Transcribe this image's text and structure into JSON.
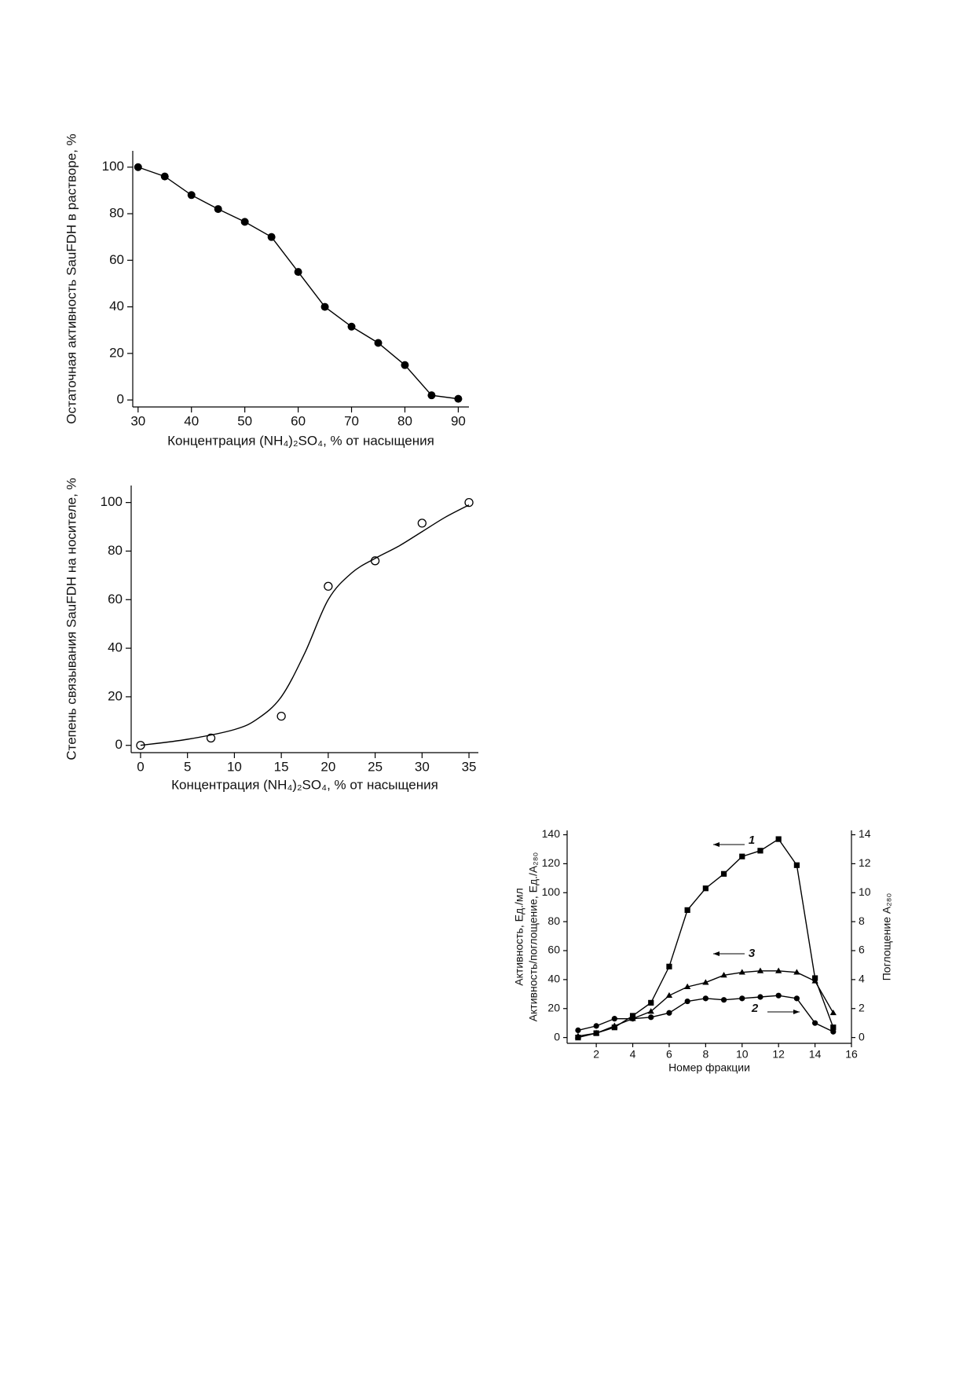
{
  "chart_data": [
    {
      "type": "line",
      "xlabel": "Концентрация (NH₄)₂SO₄, % от насыщения",
      "ylabel": "Остаточная активность SauFDH в растворе, %",
      "xlim": [
        29,
        92
      ],
      "ylim": [
        -3,
        107
      ],
      "xticks": [
        30,
        40,
        50,
        60,
        70,
        80,
        90
      ],
      "yticks": [
        0,
        20,
        40,
        60,
        80,
        100
      ],
      "series": [
        {
          "color": "#000000",
          "marker": "circle-filled",
          "line": "straight",
          "x": [
            30,
            35,
            40,
            45,
            50,
            55,
            60,
            65,
            70,
            75,
            80,
            85,
            90
          ],
          "values": [
            100,
            96,
            88,
            82,
            76.5,
            70,
            55,
            40,
            31.5,
            24.5,
            15,
            2,
            0.5
          ]
        }
      ]
    },
    {
      "type": "scatter",
      "xlabel": "Концентрация (NH₄)₂SO₄, % от насыщения",
      "ylabel": "Степень связывания SauFDH на носителе, %",
      "xlim": [
        -1,
        36
      ],
      "ylim": [
        -3,
        107
      ],
      "xticks": [
        0,
        5,
        10,
        15,
        20,
        25,
        30,
        35
      ],
      "yticks": [
        0,
        20,
        40,
        60,
        80,
        100
      ],
      "series": [
        {
          "color": "#000000",
          "marker": "circle-open",
          "line": "none",
          "x": [
            0,
            7.5,
            15,
            20,
            25,
            30,
            35
          ],
          "values": [
            0,
            3,
            12,
            65.5,
            76,
            91.5,
            100
          ]
        },
        {
          "color": "#000000",
          "marker": "none",
          "line": "smooth",
          "x": [
            0,
            5,
            10,
            12.5,
            15,
            17.5,
            20,
            22.5,
            25,
            27.5,
            30,
            32.5,
            35
          ],
          "values": [
            0,
            2.5,
            6.5,
            11,
            20,
            38,
            60,
            71,
            77,
            82,
            88,
            94,
            99
          ]
        }
      ]
    },
    {
      "type": "line",
      "xlabel": "Номер фракции",
      "ylabel": [
        "Активность, Ед./мл",
        "Активность/поглощение, Ед./A₂₈₀"
      ],
      "y2label": "Поглощение A₂₈₀",
      "xlim": [
        0.4,
        16
      ],
      "ylim": [
        -4,
        143
      ],
      "y2lim": [
        -0.4,
        14.3
      ],
      "xticks": [
        2,
        4,
        6,
        8,
        10,
        12,
        14,
        16
      ],
      "yticks": [
        0,
        20,
        40,
        60,
        80,
        100,
        120,
        140
      ],
      "y2ticks": [
        0,
        2,
        4,
        6,
        8,
        10,
        12,
        14
      ],
      "x": [
        1,
        2,
        3,
        4,
        5,
        6,
        7,
        8,
        9,
        10,
        11,
        12,
        13,
        14,
        15
      ],
      "series": [
        {
          "name": "1",
          "color": "#000000",
          "marker": "square",
          "line": "straight",
          "values": [
            0,
            3,
            7,
            15,
            24,
            49,
            88,
            103,
            113,
            125,
            129,
            137,
            119,
            41,
            7
          ]
        },
        {
          "name": "2",
          "color": "#000000",
          "marker": "circle-filled",
          "line": "straight",
          "axis": "y2",
          "values": [
            0.5,
            0.8,
            1.3,
            1.3,
            1.4,
            1.7,
            2.5,
            2.7,
            2.6,
            2.7,
            2.8,
            2.9,
            2.7,
            1.0,
            0.4
          ]
        },
        {
          "name": "3",
          "color": "#000000",
          "marker": "triangle",
          "line": "straight",
          "values": [
            1,
            3,
            8,
            13,
            18,
            29,
            35,
            38,
            43,
            45,
            46,
            46,
            45,
            39,
            17
          ]
        }
      ]
    }
  ]
}
